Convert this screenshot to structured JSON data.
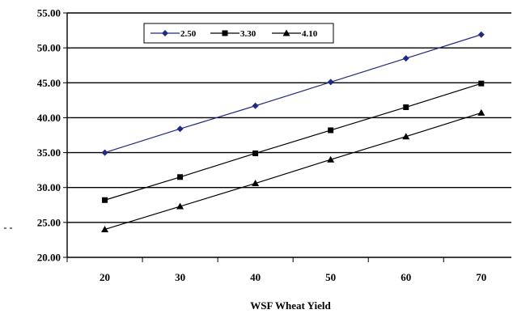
{
  "chart_data": {
    "type": "line",
    "title": "",
    "xlabel": "WSF Wheat Yield",
    "ylabel": "",
    "x": [
      20,
      30,
      40,
      50,
      60,
      70
    ],
    "ylim": [
      20,
      55
    ],
    "yticks": [
      "20.00",
      "25.00",
      "30.00",
      "35.00",
      "40.00",
      "45.00",
      "50.00",
      "55.00"
    ],
    "xticks": [
      "20",
      "30",
      "40",
      "50",
      "60",
      "70"
    ],
    "grid": "horizontal",
    "legend_position": "top-left",
    "series": [
      {
        "name": "2.50",
        "marker": "diamond",
        "color": "#1f2a80",
        "values": [
          35.0,
          38.4,
          41.7,
          45.1,
          48.5,
          51.9
        ]
      },
      {
        "name": "3.30",
        "marker": "square",
        "color": "#000000",
        "values": [
          28.2,
          31.5,
          34.9,
          38.2,
          41.5,
          44.9
        ]
      },
      {
        "name": "4.10",
        "marker": "triangle",
        "color": "#000000",
        "values": [
          24.0,
          27.3,
          30.6,
          34.0,
          37.3,
          40.7
        ]
      }
    ]
  },
  "stray_mark": "- -"
}
